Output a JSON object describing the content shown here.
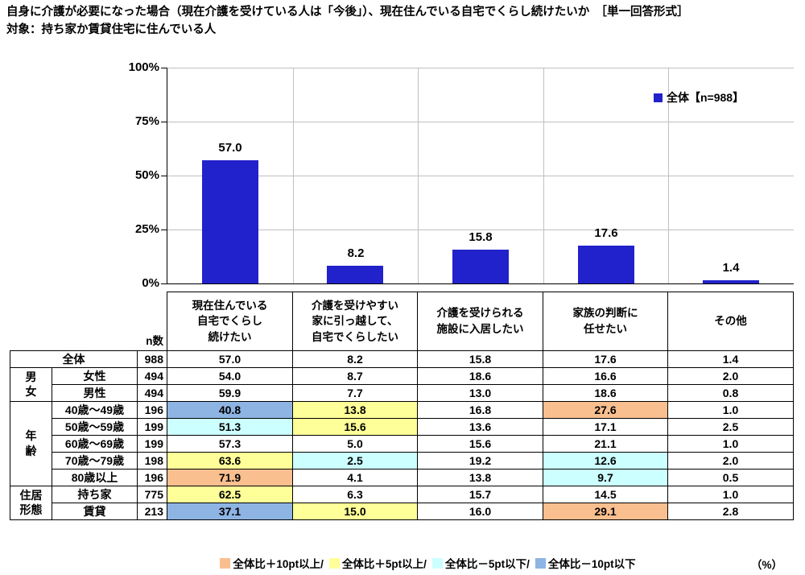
{
  "title": {
    "line1": "自身に介護が必要になった場合（現在介護を受けている人は「今後」）、現在住んでいる自宅でくらし続けたいか　［単一回答形式］",
    "line2": "対象：持ち家か賃貸住宅に住んでいる人"
  },
  "colors": {
    "bar": "#2222CC",
    "plus10": "#FABF8F",
    "plus5": "#FFFF99",
    "minus5": "#CCFFFF",
    "minus10": "#8EB4E3"
  },
  "chart": {
    "legend": "全体【n=988】",
    "y_ticks": [
      "100%",
      "75%",
      "50%",
      "25%",
      "0%"
    ],
    "value_labels": [
      "57.0",
      "8.2",
      "15.8",
      "17.6",
      "1.4"
    ]
  },
  "chart_data": {
    "type": "bar",
    "title": "自身に介護が必要になった場合（現在介護を受けている人は「今後」）、現在住んでいる自宅でくらし続けたいか ［単一回答形式］",
    "subtitle": "対象：持ち家か賃貸住宅に住んでいる人",
    "series_name": "全体【n=988】",
    "categories": [
      "現在住んでいる自宅でくらし続けたい",
      "介護を受けやすい家に引っ越して、自宅でくらしたい",
      "介護を受けられる施設に入居したい",
      "家族の判断に任せたい",
      "その他"
    ],
    "values": [
      57.0,
      8.2,
      15.8,
      17.6,
      1.4
    ],
    "ylim": [
      0,
      100
    ],
    "yticks_percent": [
      0,
      25,
      50,
      75,
      100
    ],
    "grid": true,
    "legend_position": "top-right",
    "bar_color": "#2222CC"
  },
  "table": {
    "n_label": "n数",
    "headers": [
      "現在住んでいる\n自宅でくらし\n続けたい",
      "介護を受けやすい\n家に引っ越して、\n自宅でくらしたい",
      "介護を受けられる\n施設に入居したい",
      "家族の判断に\n任せたい",
      "その他"
    ],
    "rows": [
      {
        "group": "全体",
        "label": "",
        "n": "988",
        "values": [
          "57.0",
          "8.2",
          "15.8",
          "17.6",
          "1.4"
        ],
        "highlights": [
          "",
          "",
          "",
          "",
          ""
        ]
      },
      {
        "group": "男\n女",
        "label": "女性",
        "n": "494",
        "values": [
          "54.0",
          "8.7",
          "18.6",
          "16.6",
          "2.0"
        ],
        "highlights": [
          "",
          "",
          "",
          "",
          ""
        ]
      },
      {
        "label": "男性",
        "n": "494",
        "values": [
          "59.9",
          "7.7",
          "13.0",
          "18.6",
          "0.8"
        ],
        "highlights": [
          "",
          "",
          "",
          "",
          ""
        ]
      },
      {
        "group": "年\n齢",
        "label": "40歳～49歳",
        "n": "196",
        "values": [
          "40.8",
          "13.8",
          "16.8",
          "27.6",
          "1.0"
        ],
        "highlights": [
          "minus10",
          "plus5",
          "",
          "plus10",
          ""
        ]
      },
      {
        "label": "50歳～59歳",
        "n": "199",
        "values": [
          "51.3",
          "15.6",
          "13.6",
          "17.1",
          "2.5"
        ],
        "highlights": [
          "minus5",
          "plus5",
          "",
          "",
          ""
        ]
      },
      {
        "label": "60歳～69歳",
        "n": "199",
        "values": [
          "57.3",
          "5.0",
          "15.6",
          "21.1",
          "1.0"
        ],
        "highlights": [
          "",
          "",
          "",
          "",
          ""
        ]
      },
      {
        "label": "70歳～79歳",
        "n": "198",
        "values": [
          "63.6",
          "2.5",
          "19.2",
          "12.6",
          "2.0"
        ],
        "highlights": [
          "plus5",
          "minus5",
          "",
          "minus5",
          ""
        ]
      },
      {
        "label": "80歳以上",
        "n": "196",
        "values": [
          "71.9",
          "4.1",
          "13.8",
          "9.7",
          "0.5"
        ],
        "highlights": [
          "plus10",
          "",
          "",
          "minus5",
          ""
        ]
      },
      {
        "group": "住居\n形態",
        "label": "持ち家",
        "n": "775",
        "values": [
          "62.5",
          "6.3",
          "15.7",
          "14.5",
          "1.0"
        ],
        "highlights": [
          "plus5",
          "",
          "",
          "",
          ""
        ]
      },
      {
        "label": "賃貸",
        "n": "213",
        "values": [
          "37.1",
          "15.0",
          "16.0",
          "29.1",
          "2.8"
        ],
        "highlights": [
          "minus10",
          "plus5",
          "",
          "plus10",
          ""
        ]
      }
    ]
  },
  "bottom_legend": {
    "items": [
      {
        "label": "全体比＋10pt以上/"
      },
      {
        "label": "全体比＋5pt以上/"
      },
      {
        "label": "全体比－5pt以下/"
      },
      {
        "label": "全体比－10pt以下"
      }
    ],
    "unit": "（%）"
  }
}
